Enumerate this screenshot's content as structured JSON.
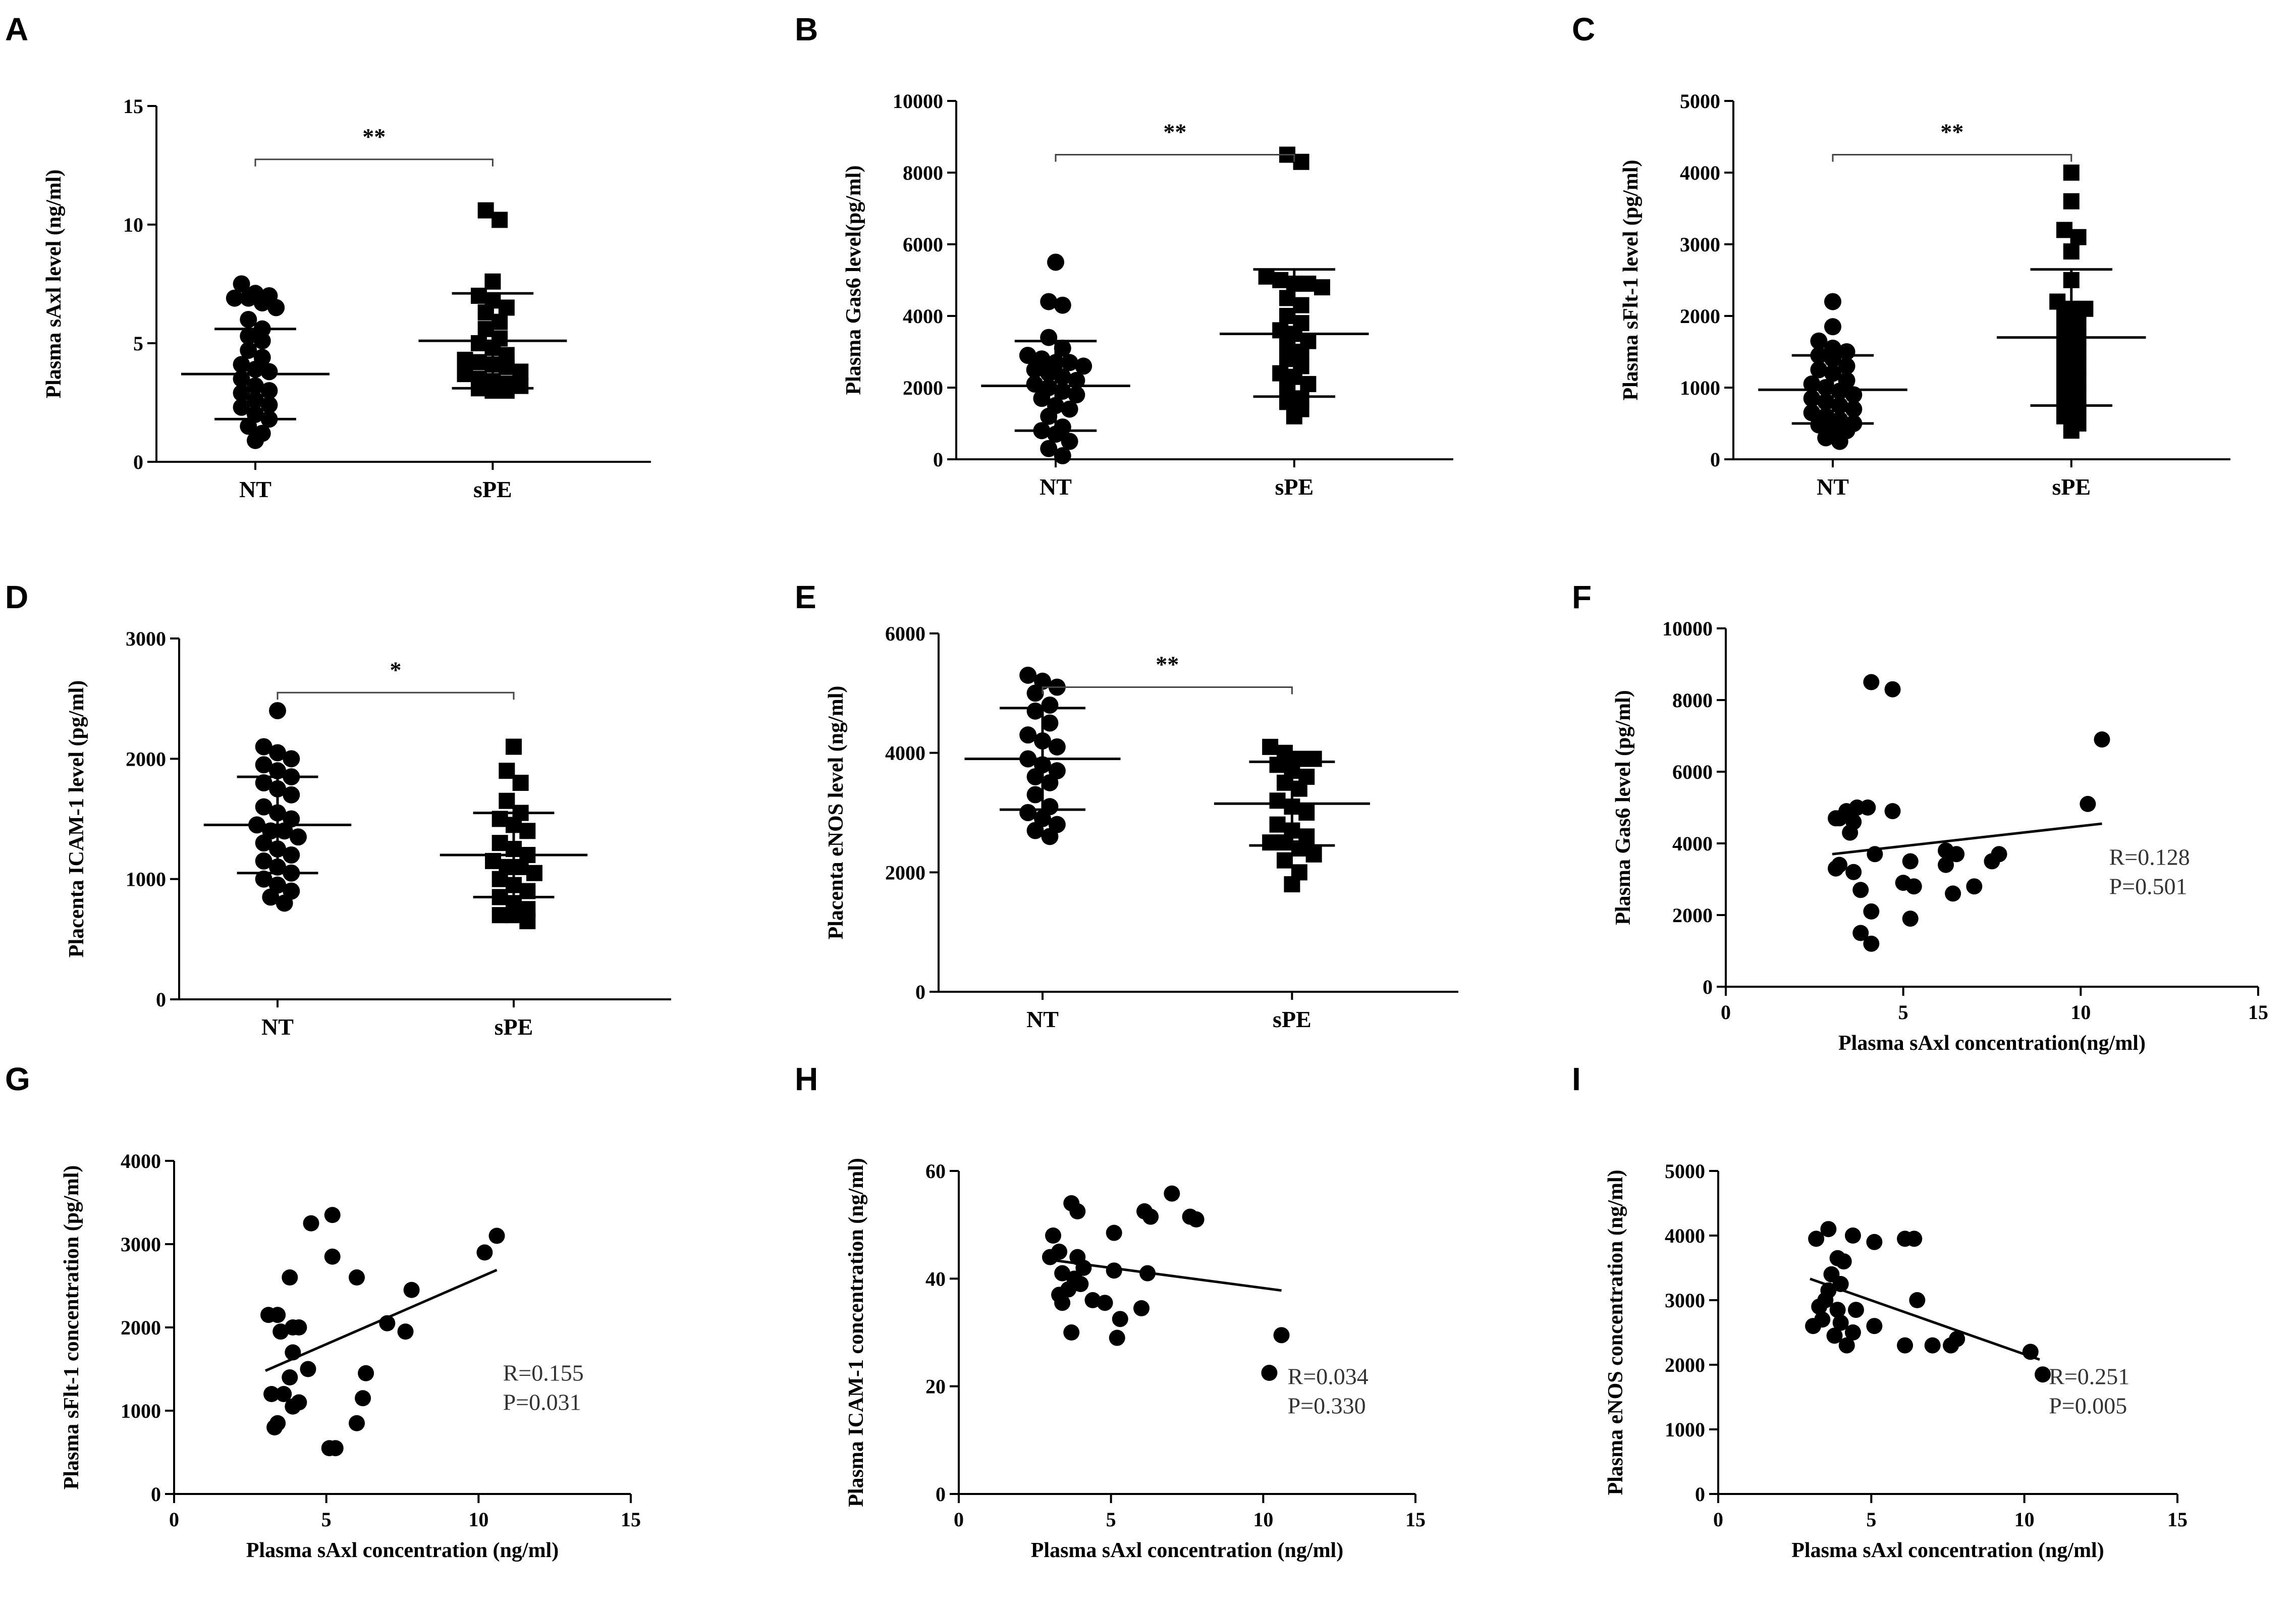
{
  "figure": {
    "panel_labels": [
      "A",
      "B",
      "C",
      "D",
      "E",
      "F",
      "G",
      "H",
      "I"
    ]
  },
  "chart_data": [
    {
      "panel": "A",
      "type": "scatter",
      "subtype": "dot-plot",
      "ylabel": "Plasma sAxl level (ng/ml)",
      "xlabel": "",
      "categories": [
        "NT",
        "sPE"
      ],
      "ylim": [
        0,
        15
      ],
      "yticks": [
        0,
        5,
        10,
        15
      ],
      "significance": "**",
      "groups": [
        {
          "name": "NT",
          "marker": "circle",
          "mean": 3.7,
          "sd_low": 1.8,
          "sd_high": 5.6,
          "values": [
            7.5,
            7.1,
            7.0,
            6.9,
            6.9,
            6.7,
            6.5,
            6.0,
            5.6,
            5.3,
            5.1,
            4.7,
            4.4,
            4.1,
            3.9,
            3.8,
            3.5,
            3.2,
            3.0,
            2.9,
            2.6,
            2.4,
            2.3,
            2.0,
            1.8,
            1.5,
            1.2,
            0.9
          ]
        },
        {
          "name": "sPE",
          "marker": "square",
          "mean": 5.1,
          "sd_low": 3.1,
          "sd_high": 7.1,
          "values": [
            10.6,
            10.2,
            7.6,
            7.0,
            6.8,
            6.5,
            6.3,
            5.9,
            5.6,
            5.2,
            5.0,
            4.8,
            4.5,
            4.3,
            4.2,
            4.1,
            4.0,
            3.8,
            3.7,
            3.5,
            3.4,
            3.3,
            3.2,
            3.1,
            3.0,
            3.0
          ]
        }
      ]
    },
    {
      "panel": "B",
      "type": "scatter",
      "subtype": "dot-plot",
      "ylabel": "Plasma Gas6 level(pg/ml)",
      "xlabel": "",
      "categories": [
        "NT",
        "sPE"
      ],
      "ylim": [
        0,
        10000
      ],
      "yticks": [
        0,
        2000,
        4000,
        6000,
        8000,
        10000
      ],
      "significance": "**",
      "groups": [
        {
          "name": "NT",
          "marker": "circle",
          "mean": 2050,
          "sd_low": 800,
          "sd_high": 3300,
          "values": [
            5500,
            4400,
            4300,
            3400,
            3100,
            2900,
            2800,
            2700,
            2700,
            2600,
            2500,
            2400,
            2300,
            2200,
            2100,
            2000,
            1900,
            1800,
            1700,
            1500,
            1400,
            1200,
            900,
            800,
            700,
            500,
            300,
            100
          ]
        },
        {
          "name": "sPE",
          "marker": "square",
          "mean": 3500,
          "sd_low": 1750,
          "sd_high": 5300,
          "values": [
            8500,
            8300,
            5100,
            5000,
            4900,
            4900,
            4800,
            4500,
            4300,
            4000,
            3800,
            3600,
            3500,
            3300,
            3200,
            3000,
            2800,
            2600,
            2400,
            2300,
            2100,
            2000,
            1700,
            1600,
            1400,
            1200
          ]
        }
      ]
    },
    {
      "panel": "C",
      "type": "scatter",
      "subtype": "dot-plot",
      "ylabel": "Plasma sFlt-1 level (pg/ml)",
      "xlabel": "",
      "categories": [
        "NT",
        "sPE"
      ],
      "ylim": [
        0,
        5000
      ],
      "yticks": [
        0,
        1000,
        2000,
        3000,
        4000,
        5000
      ],
      "significance": "**",
      "groups": [
        {
          "name": "NT",
          "marker": "circle",
          "mean": 970,
          "sd_low": 500,
          "sd_high": 1450,
          "values": [
            2200,
            1850,
            1650,
            1550,
            1500,
            1450,
            1400,
            1300,
            1250,
            1200,
            1100,
            1050,
            1000,
            950,
            900,
            850,
            800,
            750,
            700,
            650,
            600,
            550,
            500,
            480,
            450,
            400,
            300,
            250
          ]
        },
        {
          "name": "sPE",
          "marker": "square",
          "mean": 1700,
          "sd_low": 750,
          "sd_high": 2650,
          "values": [
            4000,
            3600,
            3200,
            3100,
            2900,
            2500,
            2200,
            2100,
            2100,
            2000,
            1900,
            1800,
            1700,
            1600,
            1500,
            1400,
            1300,
            1200,
            1100,
            1000,
            900,
            800,
            700,
            600,
            500,
            400
          ]
        }
      ]
    },
    {
      "panel": "D",
      "type": "scatter",
      "subtype": "dot-plot",
      "ylabel": "Placenta ICAM-1 level (pg/ml)",
      "xlabel": "",
      "categories": [
        "NT",
        "sPE"
      ],
      "ylim": [
        0,
        3000
      ],
      "yticks": [
        0,
        1000,
        2000,
        3000
      ],
      "significance": "*",
      "groups": [
        {
          "name": "NT",
          "marker": "circle",
          "mean": 1450,
          "sd_low": 1050,
          "sd_high": 1850,
          "values": [
            2400,
            2100,
            2050,
            2000,
            1950,
            1900,
            1850,
            1800,
            1750,
            1700,
            1600,
            1550,
            1500,
            1450,
            1400,
            1400,
            1350,
            1300,
            1250,
            1200,
            1150,
            1100,
            1050,
            1000,
            950,
            900,
            850,
            800
          ]
        },
        {
          "name": "sPE",
          "marker": "square",
          "mean": 1200,
          "sd_low": 850,
          "sd_high": 1550,
          "values": [
            2100,
            1900,
            1800,
            1650,
            1550,
            1500,
            1450,
            1400,
            1300,
            1250,
            1200,
            1150,
            1100,
            1100,
            1050,
            1000,
            950,
            900,
            850,
            800,
            750,
            700,
            700,
            650
          ]
        }
      ]
    },
    {
      "panel": "E",
      "type": "scatter",
      "subtype": "dot-plot",
      "ylabel": "Placenta eNOS level (ng/ml)",
      "xlabel": "",
      "categories": [
        "NT",
        "sPE"
      ],
      "ylim": [
        0,
        6000
      ],
      "yticks": [
        0,
        2000,
        4000,
        6000
      ],
      "significance": "**",
      "groups": [
        {
          "name": "NT",
          "marker": "circle",
          "mean": 3900,
          "sd_low": 3050,
          "sd_high": 4750,
          "values": [
            5300,
            5200,
            5100,
            5000,
            4800,
            4700,
            4500,
            4300,
            4200,
            4100,
            3900,
            3800,
            3700,
            3600,
            3500,
            3300,
            3100,
            3000,
            2900,
            2800,
            2700,
            2600
          ]
        },
        {
          "name": "sPE",
          "marker": "square",
          "mean": 3150,
          "sd_low": 2450,
          "sd_high": 3850,
          "values": [
            4100,
            4000,
            3900,
            3900,
            3800,
            3700,
            3600,
            3500,
            3400,
            3200,
            3100,
            3000,
            2800,
            2700,
            2600,
            2500,
            2500,
            2400,
            2300,
            2200,
            2000,
            1800
          ]
        }
      ]
    },
    {
      "panel": "F",
      "type": "scatter",
      "ylabel": "Plasma Gas6 level (pg/ml)",
      "xlabel": "Plasma sAxl concentration(ng/ml)",
      "xlim": [
        0,
        15
      ],
      "xticks": [
        0,
        5,
        10,
        15
      ],
      "ylim": [
        0,
        10000
      ],
      "yticks": [
        0,
        2000,
        4000,
        6000,
        8000,
        10000
      ],
      "stat_r": "R=0.128",
      "stat_p": "P=0.501",
      "fit": {
        "x": [
          3.0,
          10.6
        ],
        "y": [
          3700,
          4550
        ]
      },
      "points": [
        {
          "x": 4.1,
          "y": 8500
        },
        {
          "x": 4.7,
          "y": 8300
        },
        {
          "x": 10.6,
          "y": 6900
        },
        {
          "x": 10.2,
          "y": 5100
        },
        {
          "x": 3.7,
          "y": 5000
        },
        {
          "x": 4.0,
          "y": 5000
        },
        {
          "x": 3.4,
          "y": 4900
        },
        {
          "x": 4.7,
          "y": 4900
        },
        {
          "x": 3.2,
          "y": 4700
        },
        {
          "x": 3.6,
          "y": 4600
        },
        {
          "x": 3.1,
          "y": 4700
        },
        {
          "x": 3.5,
          "y": 4300
        },
        {
          "x": 6.2,
          "y": 3800
        },
        {
          "x": 6.5,
          "y": 3700
        },
        {
          "x": 7.7,
          "y": 3700
        },
        {
          "x": 4.2,
          "y": 3700
        },
        {
          "x": 5.2,
          "y": 3500
        },
        {
          "x": 7.5,
          "y": 3500
        },
        {
          "x": 3.2,
          "y": 3400
        },
        {
          "x": 6.2,
          "y": 3400
        },
        {
          "x": 3.6,
          "y": 3200
        },
        {
          "x": 3.1,
          "y": 3300
        },
        {
          "x": 5.0,
          "y": 2900
        },
        {
          "x": 5.3,
          "y": 2800
        },
        {
          "x": 3.8,
          "y": 2700
        },
        {
          "x": 6.4,
          "y": 2600
        },
        {
          "x": 7.0,
          "y": 2800
        },
        {
          "x": 4.1,
          "y": 2100
        },
        {
          "x": 5.2,
          "y": 1900
        },
        {
          "x": 3.8,
          "y": 1500
        },
        {
          "x": 4.1,
          "y": 1200
        }
      ]
    },
    {
      "panel": "G",
      "type": "scatter",
      "ylabel": "Plasma sFlt-1 concentration (pg/ml)",
      "xlabel": "Plasma sAxl concentration (ng/ml)",
      "xlim": [
        0,
        15
      ],
      "xticks": [
        0,
        5,
        10,
        15
      ],
      "ylim": [
        0,
        4000
      ],
      "yticks": [
        0,
        1000,
        2000,
        3000,
        4000
      ],
      "stat_r": "R=0.155",
      "stat_p": "P=0.031",
      "fit": {
        "x": [
          3.0,
          10.6
        ],
        "y": [
          1480,
          2690
        ]
      },
      "points": [
        {
          "x": 5.2,
          "y": 3350
        },
        {
          "x": 4.5,
          "y": 3250
        },
        {
          "x": 10.6,
          "y": 3100
        },
        {
          "x": 10.2,
          "y": 2900
        },
        {
          "x": 5.2,
          "y": 2850
        },
        {
          "x": 3.8,
          "y": 2600
        },
        {
          "x": 6.0,
          "y": 2600
        },
        {
          "x": 7.8,
          "y": 2450
        },
        {
          "x": 3.1,
          "y": 2150
        },
        {
          "x": 3.4,
          "y": 2150
        },
        {
          "x": 7.0,
          "y": 2050
        },
        {
          "x": 3.5,
          "y": 1950
        },
        {
          "x": 3.9,
          "y": 2000
        },
        {
          "x": 4.1,
          "y": 2000
        },
        {
          "x": 7.6,
          "y": 1950
        },
        {
          "x": 3.9,
          "y": 1700
        },
        {
          "x": 4.4,
          "y": 1500
        },
        {
          "x": 6.3,
          "y": 1450
        },
        {
          "x": 3.2,
          "y": 1200
        },
        {
          "x": 3.6,
          "y": 1200
        },
        {
          "x": 3.8,
          "y": 1400
        },
        {
          "x": 4.1,
          "y": 1100
        },
        {
          "x": 3.9,
          "y": 1050
        },
        {
          "x": 6.2,
          "y": 1150
        },
        {
          "x": 3.3,
          "y": 800
        },
        {
          "x": 3.4,
          "y": 850
        },
        {
          "x": 6.0,
          "y": 850
        },
        {
          "x": 5.1,
          "y": 550
        },
        {
          "x": 5.3,
          "y": 550
        }
      ]
    },
    {
      "panel": "H",
      "type": "scatter",
      "ylabel": "Plasma ICAM-1 concentration (ng/ml)",
      "xlabel": "Plasma sAxl concentration (ng/ml)",
      "xlim": [
        0,
        15
      ],
      "xticks": [
        0,
        5,
        10,
        15
      ],
      "ylim": [
        0,
        60
      ],
      "yticks": [
        0,
        20,
        40,
        60
      ],
      "stat_r": "R=0.034",
      "stat_p": "P=0.330",
      "fit": {
        "x": [
          3.0,
          10.6
        ],
        "y": [
          43.5,
          37.8
        ]
      },
      "points": [
        {
          "x": 7.0,
          "y": 55.8
        },
        {
          "x": 3.7,
          "y": 54.0
        },
        {
          "x": 3.9,
          "y": 52.5
        },
        {
          "x": 6.1,
          "y": 52.5
        },
        {
          "x": 7.6,
          "y": 51.5
        },
        {
          "x": 7.8,
          "y": 51.0
        },
        {
          "x": 6.3,
          "y": 51.5
        },
        {
          "x": 3.1,
          "y": 48.0
        },
        {
          "x": 5.1,
          "y": 48.5
        },
        {
          "x": 3.3,
          "y": 45.0
        },
        {
          "x": 3.0,
          "y": 44.0
        },
        {
          "x": 3.9,
          "y": 44.0
        },
        {
          "x": 4.1,
          "y": 42.0
        },
        {
          "x": 3.4,
          "y": 41.0
        },
        {
          "x": 5.1,
          "y": 41.5
        },
        {
          "x": 6.2,
          "y": 41.0
        },
        {
          "x": 3.8,
          "y": 40.0
        },
        {
          "x": 4.0,
          "y": 39.0
        },
        {
          "x": 3.6,
          "y": 38.0
        },
        {
          "x": 3.3,
          "y": 37.0
        },
        {
          "x": 3.4,
          "y": 35.5
        },
        {
          "x": 4.4,
          "y": 36.0
        },
        {
          "x": 4.8,
          "y": 35.5
        },
        {
          "x": 6.0,
          "y": 34.5
        },
        {
          "x": 5.3,
          "y": 32.5
        },
        {
          "x": 3.7,
          "y": 30.0
        },
        {
          "x": 5.2,
          "y": 29.0
        },
        {
          "x": 10.6,
          "y": 29.5
        },
        {
          "x": 10.2,
          "y": 22.5
        }
      ]
    },
    {
      "panel": "I",
      "type": "scatter",
      "ylabel": "Plasma eNOS concentration (ng/ml)",
      "xlabel": "Plasma sAxl concentration (ng/ml)",
      "xlim": [
        0,
        15
      ],
      "xticks": [
        0,
        5,
        10,
        15
      ],
      "ylim": [
        0,
        5000
      ],
      "yticks": [
        0,
        1000,
        2000,
        3000,
        4000,
        5000
      ],
      "stat_r": "R=0.251",
      "stat_p": "P=0.005",
      "fit": {
        "x": [
          3.0,
          10.5
        ],
        "y": [
          3330,
          2080
        ]
      },
      "points": [
        {
          "x": 3.6,
          "y": 4100
        },
        {
          "x": 4.4,
          "y": 4000
        },
        {
          "x": 3.2,
          "y": 3950
        },
        {
          "x": 6.1,
          "y": 3950
        },
        {
          "x": 6.4,
          "y": 3950
        },
        {
          "x": 5.1,
          "y": 3900
        },
        {
          "x": 3.9,
          "y": 3650
        },
        {
          "x": 4.1,
          "y": 3600
        },
        {
          "x": 3.7,
          "y": 3400
        },
        {
          "x": 4.0,
          "y": 3250
        },
        {
          "x": 3.6,
          "y": 3150
        },
        {
          "x": 3.5,
          "y": 3000
        },
        {
          "x": 6.5,
          "y": 3000
        },
        {
          "x": 3.3,
          "y": 2900
        },
        {
          "x": 4.5,
          "y": 2850
        },
        {
          "x": 3.9,
          "y": 2850
        },
        {
          "x": 3.4,
          "y": 2700
        },
        {
          "x": 4.0,
          "y": 2650
        },
        {
          "x": 3.1,
          "y": 2600
        },
        {
          "x": 5.1,
          "y": 2600
        },
        {
          "x": 4.4,
          "y": 2500
        },
        {
          "x": 7.8,
          "y": 2400
        },
        {
          "x": 7.6,
          "y": 2300
        },
        {
          "x": 4.2,
          "y": 2300
        },
        {
          "x": 6.1,
          "y": 2300
        },
        {
          "x": 7.0,
          "y": 2300
        },
        {
          "x": 10.2,
          "y": 2200
        },
        {
          "x": 10.6,
          "y": 1850
        },
        {
          "x": 3.8,
          "y": 2450
        }
      ]
    }
  ]
}
